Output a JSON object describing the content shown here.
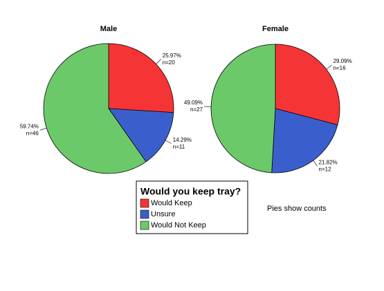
{
  "chart_data": [
    {
      "type": "pie",
      "title": "Male",
      "categories": [
        "Would Keep",
        "Unsure",
        "Would Not Keep"
      ],
      "values": [
        20,
        11,
        46
      ],
      "value_labels": [
        "n=20",
        "n=11",
        "n=46"
      ],
      "percent_labels": [
        "25.97%",
        "14.29%",
        "59.74%"
      ],
      "colors": [
        "#f53535",
        "#3a5fcd",
        "#6cc96a"
      ]
    },
    {
      "type": "pie",
      "title": "Female",
      "categories": [
        "Would Keep",
        "Unsure",
        "Would Not Keep"
      ],
      "values": [
        16,
        12,
        27
      ],
      "value_labels": [
        "n=16",
        "n=12",
        "n=27"
      ],
      "percent_labels": [
        "29.09%",
        "21.82%",
        "49.09%"
      ],
      "colors": [
        "#f53535",
        "#3a5fcd",
        "#6cc96a"
      ]
    }
  ],
  "legend_title": "Would you keep tray?",
  "note": "Pies show counts"
}
